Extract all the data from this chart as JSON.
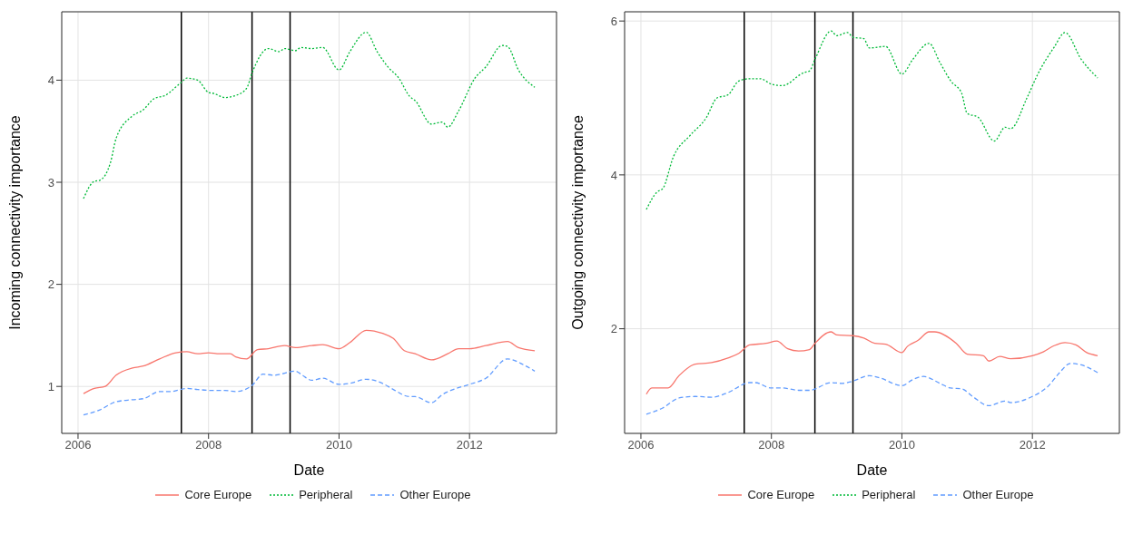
{
  "chart_data": [
    {
      "type": "line",
      "xlabel": "Date",
      "ylabel": "Incoming connectivity importance",
      "xlim": [
        "2005-10",
        "2013-05"
      ],
      "xticks": [
        "2006",
        "2008",
        "2010",
        "2012"
      ],
      "ylim": [
        0.54,
        4.67
      ],
      "yticks": [
        1,
        2,
        3,
        4
      ],
      "grid": true,
      "legend": "bottom",
      "marker": "none",
      "ref_lines": [
        {
          "axis": "x",
          "value": "2007-08",
          "color": "#000000"
        },
        {
          "axis": "x",
          "value": "2008-09",
          "color": "#000000"
        },
        {
          "axis": "x",
          "value": "2009-04",
          "color": "#000000"
        }
      ],
      "series": [
        {
          "name": "Core Europe",
          "color": "#f8766d",
          "line_style": "solid",
          "x": [
            "2006-02",
            "2006-04",
            "2006-06",
            "2006-08",
            "2006-11",
            "2007-01",
            "2007-04",
            "2007-07",
            "2007-09",
            "2007-11",
            "2008-01",
            "2008-03",
            "2008-05",
            "2008-06",
            "2008-08",
            "2008-10",
            "2008-12",
            "2009-03",
            "2009-05",
            "2009-08",
            "2009-10",
            "2010-01",
            "2010-03",
            "2010-06",
            "2010-09",
            "2010-11",
            "2011-01",
            "2011-03",
            "2011-06",
            "2011-09",
            "2011-11",
            "2012-01",
            "2012-04",
            "2012-08",
            "2012-10",
            "2013-01"
          ],
          "values": [
            0.93,
            0.98,
            1.0,
            1.11,
            1.18,
            1.2,
            1.27,
            1.33,
            1.34,
            1.32,
            1.33,
            1.32,
            1.32,
            1.29,
            1.27,
            1.36,
            1.37,
            1.4,
            1.38,
            1.4,
            1.41,
            1.37,
            1.43,
            1.55,
            1.52,
            1.47,
            1.35,
            1.32,
            1.26,
            1.32,
            1.37,
            1.37,
            1.4,
            1.44,
            1.38,
            1.35
          ]
        },
        {
          "name": "Peripheral",
          "color": "#00ba38",
          "line_style": "dotted",
          "x": [
            "2006-02",
            "2006-04",
            "2006-05",
            "2006-07",
            "2006-08",
            "2006-11",
            "2007-01",
            "2007-03",
            "2007-05",
            "2007-08",
            "2007-09",
            "2007-11",
            "2008-01",
            "2008-02",
            "2008-04",
            "2008-06",
            "2008-08",
            "2008-09",
            "2008-12",
            "2009-02",
            "2009-03",
            "2009-05",
            "2009-06",
            "2009-08",
            "2009-10",
            "2010-01",
            "2010-03",
            "2010-06",
            "2010-08",
            "2010-10",
            "2010-12",
            "2011-02",
            "2011-03",
            "2011-06",
            "2011-08",
            "2011-09",
            "2011-11",
            "2012-02",
            "2012-04",
            "2012-07",
            "2012-08",
            "2012-10",
            "2013-01"
          ],
          "values": [
            2.84,
            3.01,
            3.02,
            3.2,
            3.43,
            3.65,
            3.71,
            3.82,
            3.85,
            3.98,
            4.02,
            4.0,
            3.88,
            3.87,
            3.83,
            3.85,
            3.92,
            4.07,
            4.31,
            4.28,
            4.31,
            4.29,
            4.32,
            4.31,
            4.32,
            4.1,
            4.28,
            4.47,
            4.28,
            4.13,
            4.02,
            3.84,
            3.8,
            3.57,
            3.59,
            3.54,
            3.7,
            4.02,
            4.13,
            4.34,
            4.33,
            4.1,
            3.93
          ]
        },
        {
          "name": "Other Europe",
          "color": "#619cff",
          "line_style": "dashed",
          "x": [
            "2006-02",
            "2006-05",
            "2006-08",
            "2006-11",
            "2007-01",
            "2007-04",
            "2007-06",
            "2007-09",
            "2007-11",
            "2008-02",
            "2008-04",
            "2008-06",
            "2008-09",
            "2008-11",
            "2009-01",
            "2009-05",
            "2009-06",
            "2009-08",
            "2009-10",
            "2010-01",
            "2010-03",
            "2010-06",
            "2010-09",
            "2010-11",
            "2011-02",
            "2011-03",
            "2011-06",
            "2011-08",
            "2011-10",
            "2012-01",
            "2012-04",
            "2012-08",
            "2012-11",
            "2013-01"
          ],
          "values": [
            0.72,
            0.77,
            0.85,
            0.87,
            0.88,
            0.95,
            0.95,
            0.98,
            0.97,
            0.96,
            0.96,
            0.95,
            1.01,
            1.12,
            1.11,
            1.15,
            1.12,
            1.06,
            1.08,
            1.02,
            1.03,
            1.07,
            1.03,
            0.97,
            0.9,
            0.9,
            0.84,
            0.92,
            0.97,
            1.02,
            1.08,
            1.27,
            1.21,
            1.15
          ]
        }
      ]
    },
    {
      "type": "line",
      "xlabel": "Date",
      "ylabel": "Outgoing connectivity importance",
      "xlim": [
        "2005-10",
        "2013-05"
      ],
      "xticks": [
        "2006",
        "2008",
        "2010",
        "2012"
      ],
      "ylim": [
        0.64,
        6.12
      ],
      "yticks": [
        2,
        4,
        6
      ],
      "grid": true,
      "legend": "bottom",
      "marker": "none",
      "ref_lines": [
        {
          "axis": "x",
          "value": "2007-08",
          "color": "#000000"
        },
        {
          "axis": "x",
          "value": "2008-09",
          "color": "#000000"
        },
        {
          "axis": "x",
          "value": "2009-04",
          "color": "#000000"
        }
      ],
      "series": [
        {
          "name": "Core Europe",
          "color": "#f8766d",
          "line_style": "solid",
          "x": [
            "2006-02",
            "2006-03",
            "2006-06",
            "2006-08",
            "2006-11",
            "2007-02",
            "2007-05",
            "2007-07",
            "2007-09",
            "2007-12",
            "2008-02",
            "2008-04",
            "2008-06",
            "2008-08",
            "2008-09",
            "2008-12",
            "2009-01",
            "2009-04",
            "2009-06",
            "2009-08",
            "2009-10",
            "2010-01",
            "2010-02",
            "2010-04",
            "2010-06",
            "2010-07",
            "2010-11",
            "2011-01",
            "2011-04",
            "2011-05",
            "2011-07",
            "2011-09",
            "2012-01",
            "2012-03",
            "2012-05",
            "2012-07",
            "2012-09",
            "2012-11",
            "2013-01"
          ],
          "values": [
            1.15,
            1.23,
            1.23,
            1.39,
            1.54,
            1.56,
            1.62,
            1.68,
            1.79,
            1.81,
            1.84,
            1.74,
            1.71,
            1.73,
            1.81,
            1.96,
            1.92,
            1.91,
            1.88,
            1.81,
            1.8,
            1.69,
            1.77,
            1.85,
            1.96,
            1.96,
            1.81,
            1.67,
            1.65,
            1.58,
            1.64,
            1.61,
            1.65,
            1.7,
            1.78,
            1.82,
            1.79,
            1.69,
            1.65
          ]
        },
        {
          "name": "Peripheral",
          "color": "#00ba38",
          "line_style": "dotted",
          "x": [
            "2006-02",
            "2006-04",
            "2006-05",
            "2006-07",
            "2006-10",
            "2007-01",
            "2007-03",
            "2007-05",
            "2007-07",
            "2007-09",
            "2007-11",
            "2008-01",
            "2008-03",
            "2008-07",
            "2008-08",
            "2008-09",
            "2008-12",
            "2009-01",
            "2009-03",
            "2009-04",
            "2009-06",
            "2009-07",
            "2009-10",
            "2010-01",
            "2010-03",
            "2010-06",
            "2010-08",
            "2010-10",
            "2010-12",
            "2011-01",
            "2011-03",
            "2011-06",
            "2011-08",
            "2011-09",
            "2011-12",
            "2012-02",
            "2012-05",
            "2012-07",
            "2012-10",
            "2013-01"
          ],
          "values": [
            3.55,
            3.78,
            3.82,
            4.24,
            4.51,
            4.74,
            5.0,
            5.04,
            5.22,
            5.25,
            5.25,
            5.18,
            5.16,
            5.33,
            5.35,
            5.5,
            5.87,
            5.81,
            5.85,
            5.79,
            5.77,
            5.65,
            5.67,
            5.31,
            5.5,
            5.71,
            5.46,
            5.22,
            5.06,
            4.8,
            4.75,
            4.44,
            4.62,
            4.6,
            5.0,
            5.31,
            5.66,
            5.85,
            5.5,
            5.26
          ]
        },
        {
          "name": "Other Europe",
          "color": "#619cff",
          "line_style": "dashed",
          "x": [
            "2006-02",
            "2006-05",
            "2006-08",
            "2006-11",
            "2007-02",
            "2007-05",
            "2007-09",
            "2007-10",
            "2008-01",
            "2008-03",
            "2008-06",
            "2008-08",
            "2008-12",
            "2009-02",
            "2009-04",
            "2009-07",
            "2009-09",
            "2010-01",
            "2010-03",
            "2010-05",
            "2010-08",
            "2010-10",
            "2010-12",
            "2011-02",
            "2011-05",
            "2011-08",
            "2011-09",
            "2012-01",
            "2012-04",
            "2012-06",
            "2012-08",
            "2012-10",
            "2013-01"
          ],
          "values": [
            0.89,
            0.97,
            1.1,
            1.12,
            1.11,
            1.17,
            1.3,
            1.3,
            1.23,
            1.23,
            1.2,
            1.2,
            1.3,
            1.29,
            1.32,
            1.39,
            1.36,
            1.26,
            1.34,
            1.38,
            1.29,
            1.23,
            1.22,
            1.12,
            1.0,
            1.06,
            1.04,
            1.12,
            1.26,
            1.43,
            1.55,
            1.53,
            1.43
          ]
        }
      ]
    }
  ]
}
